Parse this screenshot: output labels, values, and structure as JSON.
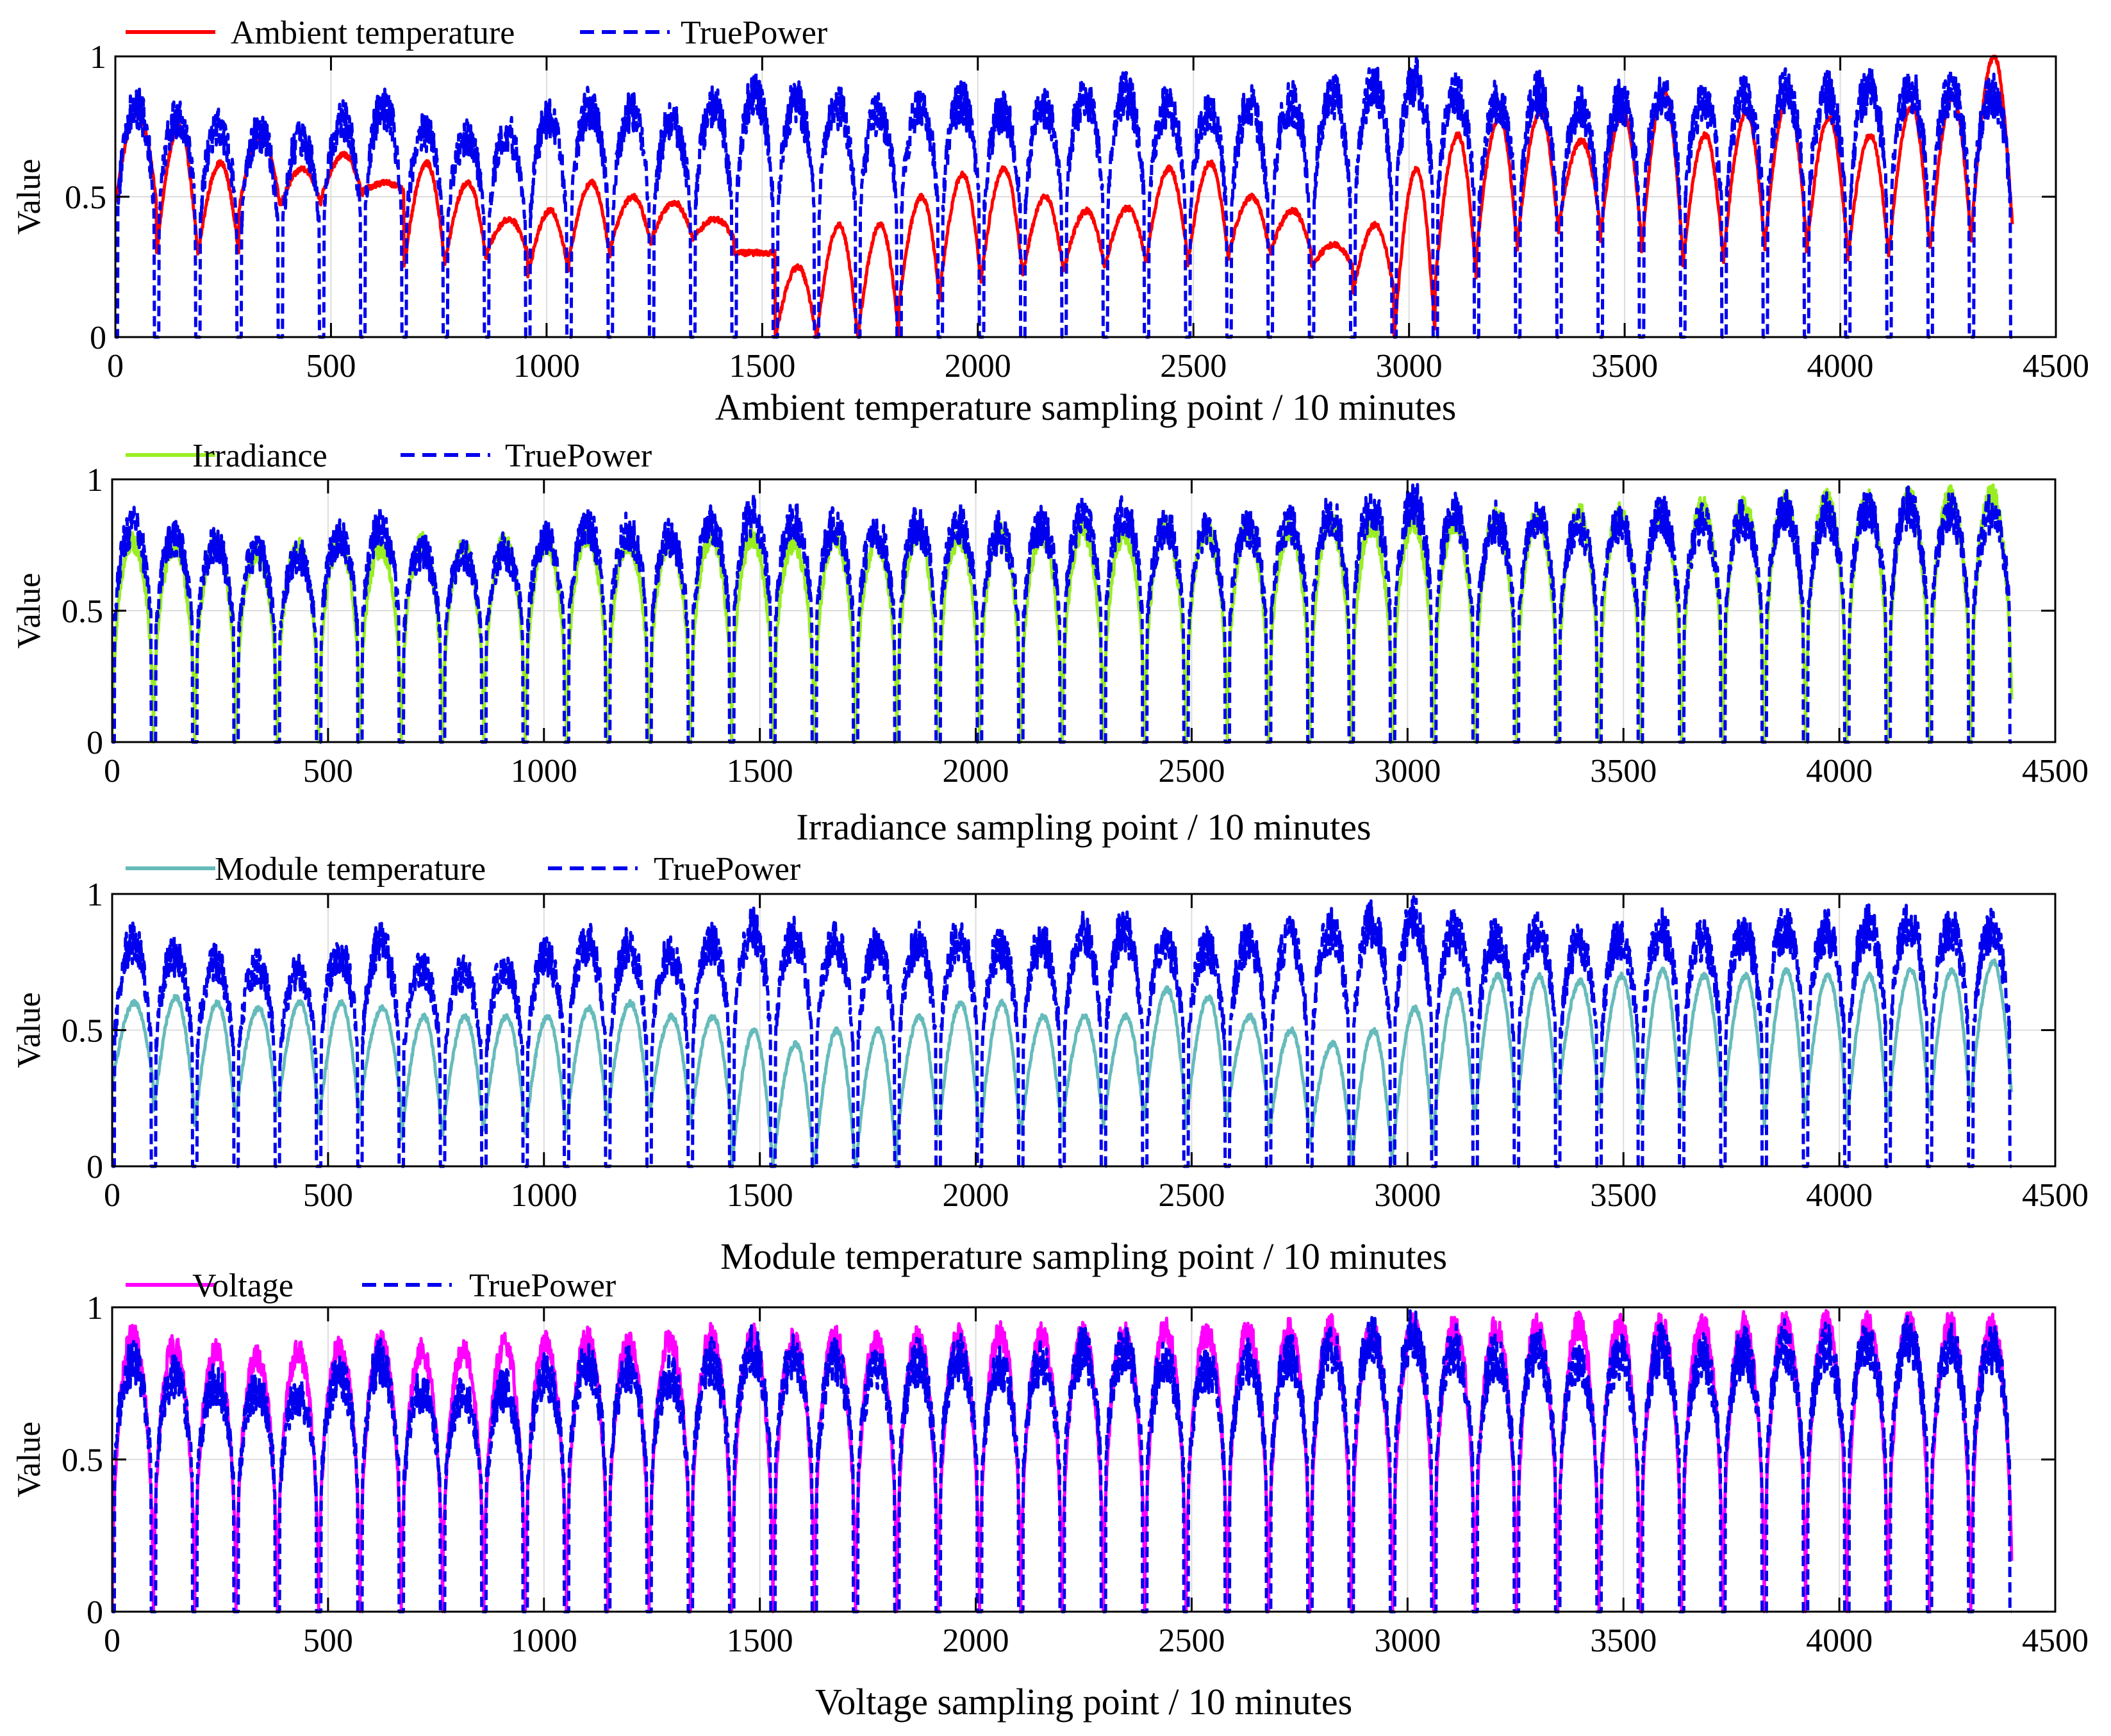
{
  "chart_data": [
    {
      "type": "line",
      "xlabel": "Ambient temperature sampling point / 10 minutes",
      "ylabel": "Value",
      "xlim": [
        0,
        4500
      ],
      "ylim": [
        0,
        1
      ],
      "xticks": [
        0,
        500,
        1000,
        1500,
        2000,
        2500,
        3000,
        3500,
        4000,
        4500
      ],
      "yticks": [
        0,
        0.5,
        1
      ],
      "ytick_labels": [
        "0",
        "0.5",
        "1"
      ],
      "grid": true,
      "legend_position": "top-left",
      "n_days": 46,
      "points_per_day": 96,
      "series": [
        {
          "name": "Ambient temperature",
          "color": "#ff0000",
          "style": "solid",
          "daily_min": [
            0.48,
            0.3,
            0.29,
            0.46,
            0.47,
            0.5,
            0.52,
            0.25,
            0.27,
            0.3,
            0.22,
            0.28,
            0.32,
            0.35,
            0.35,
            0.3,
            0.0,
            0.0,
            0.0,
            0.12,
            0.18,
            0.22,
            0.22,
            0.24,
            0.26,
            0.28,
            0.26,
            0.3,
            0.3,
            0.25,
            0.16,
            0.0,
            0.2,
            0.3,
            0.35,
            0.4,
            0.35,
            0.3,
            0.25,
            0.3,
            0.35,
            0.3,
            0.28,
            0.3,
            0.32,
            0.38
          ],
          "daily_max": [
            0.8,
            0.75,
            0.62,
            0.72,
            0.6,
            0.65,
            0.55,
            0.62,
            0.55,
            0.42,
            0.45,
            0.55,
            0.5,
            0.48,
            0.42,
            0.3,
            0.25,
            0.4,
            0.4,
            0.5,
            0.58,
            0.6,
            0.5,
            0.45,
            0.46,
            0.6,
            0.62,
            0.5,
            0.45,
            0.33,
            0.4,
            0.6,
            0.72,
            0.78,
            0.8,
            0.7,
            0.8,
            0.88,
            0.72,
            0.8,
            0.85,
            0.78,
            0.72,
            0.82,
            0.86,
            1.0
          ]
        },
        {
          "name": "TruePower",
          "color": "#0000ee",
          "style": "dashed",
          "daily_max": [
            0.9,
            0.85,
            0.82,
            0.8,
            0.78,
            0.85,
            0.9,
            0.8,
            0.78,
            0.8,
            0.85,
            0.9,
            0.88,
            0.85,
            0.9,
            0.95,
            0.92,
            0.9,
            0.88,
            0.9,
            0.92,
            0.88,
            0.9,
            0.94,
            0.95,
            0.9,
            0.88,
            0.9,
            0.92,
            0.95,
            0.98,
            1.0,
            0.95,
            0.92,
            0.95,
            0.9,
            0.92,
            0.95,
            0.92,
            0.94,
            0.96,
            0.95,
            0.97,
            0.98,
            0.96,
            0.95
          ]
        }
      ]
    },
    {
      "type": "line",
      "xlabel": "Irradiance sampling point / 10 minutes",
      "ylabel": "Value",
      "xlim": [
        0,
        4500
      ],
      "ylim": [
        0,
        1
      ],
      "xticks": [
        0,
        500,
        1000,
        1500,
        2000,
        2500,
        3000,
        3500,
        4000,
        4500
      ],
      "yticks": [
        0,
        0.5,
        1
      ],
      "ytick_labels": [
        "0",
        "0.5",
        "1"
      ],
      "grid": true,
      "legend_position": "top-left",
      "n_days": 46,
      "points_per_day": 96,
      "series": [
        {
          "name": "Irradiance",
          "color": "#99ee22",
          "style": "solid",
          "daily_max": [
            0.8,
            0.78,
            0.8,
            0.76,
            0.78,
            0.8,
            0.78,
            0.8,
            0.78,
            0.8,
            0.8,
            0.82,
            0.8,
            0.8,
            0.82,
            0.82,
            0.8,
            0.82,
            0.8,
            0.84,
            0.82,
            0.84,
            0.83,
            0.85,
            0.84,
            0.86,
            0.85,
            0.86,
            0.85,
            0.88,
            0.87,
            0.88,
            0.88,
            0.9,
            0.9,
            0.92,
            0.92,
            0.93,
            0.94,
            0.95,
            0.96,
            0.97,
            0.97,
            0.98,
            0.98,
            0.99
          ]
        },
        {
          "name": "TruePower",
          "color": "#0000ee",
          "style": "dashed",
          "daily_max": [
            0.9,
            0.85,
            0.82,
            0.8,
            0.78,
            0.85,
            0.9,
            0.8,
            0.78,
            0.8,
            0.85,
            0.9,
            0.88,
            0.85,
            0.9,
            0.95,
            0.92,
            0.9,
            0.88,
            0.9,
            0.92,
            0.88,
            0.9,
            0.94,
            0.95,
            0.9,
            0.88,
            0.9,
            0.92,
            0.95,
            0.98,
            1.0,
            0.95,
            0.92,
            0.95,
            0.9,
            0.92,
            0.95,
            0.92,
            0.94,
            0.96,
            0.95,
            0.97,
            0.98,
            0.96,
            0.95
          ]
        }
      ]
    },
    {
      "type": "line",
      "xlabel": "Module temperature sampling point / 10 minutes",
      "ylabel": "Value",
      "xlim": [
        0,
        4500
      ],
      "ylim": [
        0,
        1
      ],
      "xticks": [
        0,
        500,
        1000,
        1500,
        2000,
        2500,
        3000,
        3500,
        4000,
        4500
      ],
      "yticks": [
        0,
        0.5,
        1
      ],
      "ytick_labels": [
        "0",
        "0.5",
        "1"
      ],
      "grid": true,
      "legend_position": "top-left",
      "n_days": 46,
      "points_per_day": 96,
      "series": [
        {
          "name": "Module temperature",
          "color": "#66bbbb",
          "style": "solid",
          "daily_min": [
            0.3,
            0.2,
            0.15,
            0.2,
            0.2,
            0.15,
            0.22,
            0.1,
            0.12,
            0.15,
            0.12,
            0.15,
            0.2,
            0.18,
            0.15,
            0.0,
            0.0,
            0.0,
            0.0,
            0.1,
            0.12,
            0.1,
            0.12,
            0.15,
            0.15,
            0.2,
            0.15,
            0.2,
            0.1,
            0.08,
            0.0,
            0.05,
            0.15,
            0.2,
            0.2,
            0.25,
            0.2,
            0.15,
            0.2,
            0.2,
            0.15,
            0.2,
            0.15,
            0.2,
            0.2,
            0.25
          ],
          "daily_max": [
            0.6,
            0.62,
            0.6,
            0.58,
            0.6,
            0.6,
            0.58,
            0.55,
            0.55,
            0.55,
            0.55,
            0.58,
            0.6,
            0.55,
            0.55,
            0.5,
            0.45,
            0.5,
            0.5,
            0.55,
            0.6,
            0.6,
            0.55,
            0.55,
            0.55,
            0.65,
            0.62,
            0.55,
            0.5,
            0.45,
            0.5,
            0.58,
            0.65,
            0.7,
            0.7,
            0.68,
            0.7,
            0.72,
            0.7,
            0.7,
            0.72,
            0.7,
            0.7,
            0.72,
            0.72,
            0.75
          ]
        },
        {
          "name": "TruePower",
          "color": "#0000ee",
          "style": "dashed",
          "daily_max": [
            0.9,
            0.85,
            0.82,
            0.8,
            0.78,
            0.85,
            0.9,
            0.8,
            0.78,
            0.8,
            0.85,
            0.9,
            0.88,
            0.85,
            0.9,
            0.95,
            0.92,
            0.9,
            0.88,
            0.9,
            0.92,
            0.88,
            0.9,
            0.94,
            0.95,
            0.9,
            0.88,
            0.9,
            0.92,
            0.95,
            0.98,
            1.0,
            0.95,
            0.92,
            0.95,
            0.9,
            0.92,
            0.95,
            0.92,
            0.94,
            0.96,
            0.95,
            0.97,
            0.98,
            0.96,
            0.95
          ]
        }
      ]
    },
    {
      "type": "line",
      "xlabel": "Voltage sampling point / 10 minutes",
      "ylabel": "Value",
      "xlim": [
        0,
        4500
      ],
      "ylim": [
        0,
        1
      ],
      "xticks": [
        0,
        500,
        1000,
        1500,
        2000,
        2500,
        3000,
        3500,
        4000,
        4500
      ],
      "yticks": [
        0,
        0.5,
        1
      ],
      "ytick_labels": [
        "0",
        "0.5",
        "1"
      ],
      "grid": true,
      "legend_position": "top-left",
      "n_days": 46,
      "points_per_day": 96,
      "series": [
        {
          "name": "Voltage",
          "color": "#ff00ff",
          "style": "solid",
          "daily_max": [
            0.95,
            0.92,
            0.9,
            0.88,
            0.9,
            0.92,
            0.93,
            0.9,
            0.9,
            0.92,
            0.93,
            0.94,
            0.93,
            0.94,
            0.95,
            0.95,
            0.94,
            0.95,
            0.94,
            0.95,
            0.95,
            0.96,
            0.95,
            0.96,
            0.96,
            0.97,
            0.96,
            0.97,
            0.97,
            0.98,
            0.97,
            0.98,
            0.98,
            0.98,
            0.98,
            0.99,
            0.99,
            0.99,
            0.99,
            0.99,
            0.99,
            0.99,
            0.99,
            0.99,
            0.99,
            0.99
          ]
        },
        {
          "name": "TruePower",
          "color": "#0000ee",
          "style": "dashed",
          "daily_max": [
            0.9,
            0.85,
            0.82,
            0.8,
            0.78,
            0.85,
            0.9,
            0.8,
            0.78,
            0.8,
            0.85,
            0.9,
            0.88,
            0.85,
            0.9,
            0.95,
            0.92,
            0.9,
            0.88,
            0.9,
            0.92,
            0.88,
            0.9,
            0.94,
            0.95,
            0.9,
            0.88,
            0.9,
            0.92,
            0.95,
            0.98,
            1.0,
            0.95,
            0.92,
            0.95,
            0.9,
            0.92,
            0.95,
            0.92,
            0.94,
            0.96,
            0.95,
            0.97,
            0.98,
            0.96,
            0.95
          ]
        }
      ]
    }
  ]
}
